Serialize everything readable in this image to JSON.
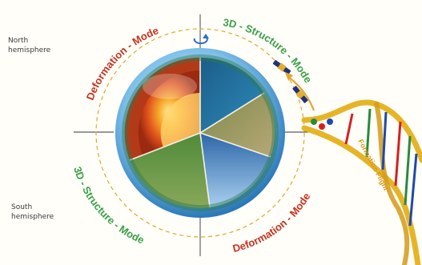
{
  "labels": {
    "north": [
      "North",
      "hemisphere"
    ],
    "south": [
      "South",
      "hemisphere"
    ],
    "deformation_top": "Deformation - Mode",
    "structure_top": "3D - Structure - Mode",
    "deformation_bottom": "Deformation - Mode",
    "structure_bottom": "3D - Structure - Mode",
    "formation_flight": "Formation Flight"
  },
  "colors": {
    "deformation": "#c8321e",
    "structure": "#3aa046",
    "orbit_ring": "#e4a62e",
    "globe_blue": "#1f6fb0",
    "dna_gold": "#e6b527"
  },
  "icons": [
    "rotation-arrow-icon",
    "satellite-icon",
    "satellite-icon",
    "orbit-arrow-icon",
    "dna-helix-icon"
  ]
}
